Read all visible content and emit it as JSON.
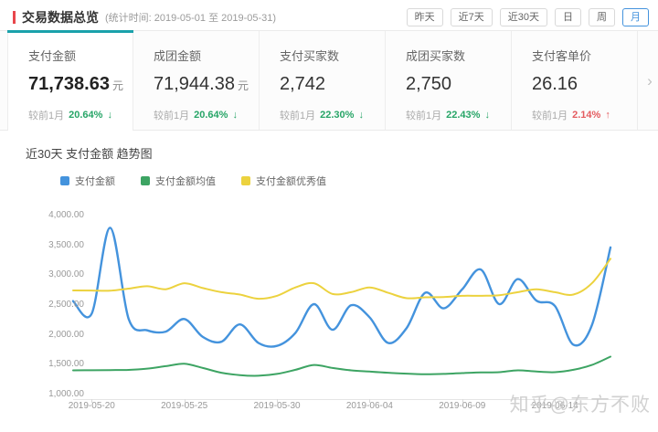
{
  "header": {
    "title": "交易数据总览",
    "subtitle": "(统计时间: 2019-05-01 至 2019-05-31)",
    "range_buttons": [
      {
        "name": "yesterday",
        "label": "昨天",
        "active": false
      },
      {
        "name": "last-7-days",
        "label": "近7天",
        "active": false
      },
      {
        "name": "last-30-days",
        "label": "近30天",
        "active": false
      },
      {
        "name": "day",
        "label": "日",
        "active": false
      },
      {
        "name": "week",
        "label": "周",
        "active": false
      },
      {
        "name": "month",
        "label": "月",
        "active": true
      }
    ]
  },
  "stats": {
    "compare_label": "较前1月",
    "next_arrow": "›",
    "cards": [
      {
        "name": "payment-amount",
        "label": "支付金额",
        "value": "71,738.63",
        "unit": "元",
        "change": "20.64%",
        "direction": "down",
        "active": true
      },
      {
        "name": "group-amount",
        "label": "成团金额",
        "value": "71,944.38",
        "unit": "元",
        "change": "20.64%",
        "direction": "down",
        "active": false
      },
      {
        "name": "payment-buyers",
        "label": "支付买家数",
        "value": "2,742",
        "unit": "",
        "change": "22.30%",
        "direction": "down",
        "active": false
      },
      {
        "name": "group-buyers",
        "label": "成团买家数",
        "value": "2,750",
        "unit": "",
        "change": "22.43%",
        "direction": "down",
        "active": false
      },
      {
        "name": "payment-per-customer",
        "label": "支付客单价",
        "value": "26.16",
        "unit": "",
        "change": "2.14%",
        "direction": "up",
        "active": false
      }
    ]
  },
  "chart": {
    "title": "近30天 支付金额 趋势图",
    "watermark": "知乎@东方不败"
  },
  "chart_data": {
    "type": "line",
    "title": "近30天 支付金额 趋势图",
    "x": [
      "2019-05-19",
      "2019-05-20",
      "2019-05-21",
      "2019-05-22",
      "2019-05-23",
      "2019-05-24",
      "2019-05-25",
      "2019-05-26",
      "2019-05-27",
      "2019-05-28",
      "2019-05-29",
      "2019-05-30",
      "2019-05-31",
      "2019-06-01",
      "2019-06-02",
      "2019-06-03",
      "2019-06-04",
      "2019-06-05",
      "2019-06-06",
      "2019-06-07",
      "2019-06-08",
      "2019-06-09",
      "2019-06-10",
      "2019-06-11",
      "2019-06-12",
      "2019-06-13",
      "2019-06-14",
      "2019-06-15",
      "2019-06-16",
      "2019-06-17"
    ],
    "x_tick_indices": [
      1,
      6,
      11,
      16,
      21,
      26
    ],
    "x_tick_labels": [
      "2019-05-20",
      "2019-05-25",
      "2019-05-30",
      "2019-06-04",
      "2019-06-09",
      "2019-06-14"
    ],
    "ylim": [
      1000,
      4000
    ],
    "y_tick_values": [
      1000,
      1500,
      2000,
      2500,
      3000,
      3500,
      4000
    ],
    "y_tick_labels": [
      "1,000.00",
      "1,500.00",
      "2,000.00",
      "2,500.00",
      "3,000.00",
      "3,500.00",
      "4,000.00"
    ],
    "grid": false,
    "legend_position": "top-left",
    "series": [
      {
        "key": "payment-amount",
        "name": "支付金额",
        "color": "#4493dd",
        "width": 2.4,
        "values": [
          2550,
          2340,
          3780,
          2250,
          2060,
          2040,
          2250,
          1950,
          1870,
          2160,
          1850,
          1800,
          2020,
          2500,
          2070,
          2480,
          2280,
          1850,
          2100,
          2690,
          2430,
          2750,
          3080,
          2500,
          2920,
          2560,
          2470,
          1820,
          2150,
          3450
        ]
      },
      {
        "key": "payment-amount-mean",
        "name": "支付金额均值",
        "color": "#3da463",
        "width": 2,
        "values": [
          1390,
          1392,
          1395,
          1398,
          1420,
          1460,
          1500,
          1430,
          1350,
          1310,
          1300,
          1330,
          1400,
          1480,
          1430,
          1390,
          1370,
          1350,
          1335,
          1325,
          1330,
          1345,
          1355,
          1360,
          1390,
          1370,
          1360,
          1400,
          1480,
          1620
        ]
      },
      {
        "key": "payment-amount-excellent",
        "name": "支付金额优秀值",
        "color": "#ecd23e",
        "width": 2,
        "values": [
          2730,
          2728,
          2725,
          2760,
          2800,
          2750,
          2850,
          2770,
          2700,
          2660,
          2590,
          2640,
          2780,
          2850,
          2670,
          2700,
          2780,
          2690,
          2600,
          2615,
          2620,
          2640,
          2640,
          2650,
          2700,
          2750,
          2700,
          2660,
          2850,
          3260
        ]
      }
    ]
  },
  "colors": {
    "accent_red": "#e8474c",
    "teal_active": "#1aa1ab",
    "button_blue": "#4493dd",
    "down_green": "#27a567",
    "up_red": "#e45b5f",
    "axis_text": "#999999",
    "watermark_gray": "#c9c9c9"
  }
}
